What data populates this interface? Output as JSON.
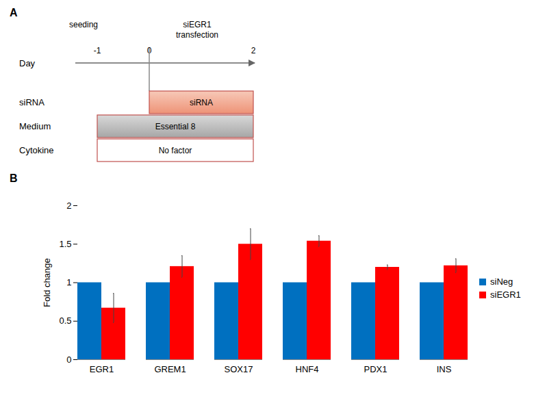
{
  "diagram": {
    "label": "A",
    "events": [
      {
        "day": -1,
        "label": "seeding"
      },
      {
        "day": 0,
        "label": "siEGR1 transfection"
      }
    ],
    "axis_label": "Day",
    "days": [
      -1,
      0,
      2
    ],
    "rows": [
      {
        "label": "siRNA",
        "box": "siRNA",
        "start": 0,
        "end": 2
      },
      {
        "label": "Medium",
        "box": "Essential 8",
        "start": -1,
        "end": 2
      },
      {
        "label": "Cytokine",
        "box": "No factor",
        "start": -1,
        "end": 2
      }
    ]
  },
  "chart_data": {
    "type": "bar",
    "title": "B",
    "categories": [
      "EGR1",
      "GREM1",
      "SOX17",
      "HNF4",
      "PDX1",
      "INS"
    ],
    "series": [
      {
        "name": "siNeg",
        "color": "#0070C0",
        "values": [
          1,
          1,
          1,
          1,
          1,
          1
        ]
      },
      {
        "name": "siEGR1",
        "color": "#FF0000",
        "values": [
          0.67,
          1.21,
          1.5,
          1.54,
          1.2,
          1.22
        ],
        "errors": [
          0.19,
          0.14,
          0.2,
          0.07,
          0.03,
          0.09
        ]
      }
    ],
    "ylabel": "Fold change",
    "ylim": [
      0,
      2
    ],
    "yticks": [
      0,
      0.5,
      1,
      1.5,
      2
    ],
    "grid": false,
    "legend": "right"
  }
}
